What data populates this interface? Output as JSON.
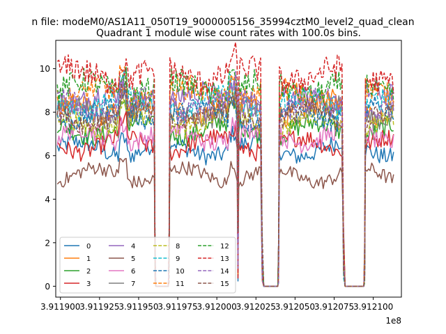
{
  "chart_data": {
    "type": "line",
    "suptitle": "n file: modeM0/AS1A11_050T19_9000005156_35994cztM0_level2_quad_clean",
    "title": "Quadrant 1 module wise count rates with 100.0s bins.",
    "xlabel": "",
    "ylabel": "",
    "x_offset_label": "1e8",
    "xlim": [
      391189700,
      391211800
    ],
    "ylim": [
      -0.5,
      11.3
    ],
    "xticks": [
      391190000,
      391192500,
      391195000,
      391197500,
      391200000,
      391202500,
      391205000,
      391207500,
      391210000
    ],
    "xtick_labels": [
      "3.911900",
      "3.911925",
      "3.911950",
      "3.911975",
      "3.912000",
      "3.912025",
      "3.912050",
      "3.912075",
      "3.912100"
    ],
    "yticks": [
      0,
      2,
      4,
      6,
      8,
      10
    ],
    "ytick_labels": [
      "0",
      "2",
      "4",
      "6",
      "8",
      "10"
    ],
    "grid": false,
    "legend_location": "lower-left",
    "legend_columns": 4,
    "bin_seconds": 100,
    "active_segments": [
      [
        391189800,
        391196000
      ],
      [
        391197000,
        391201300
      ],
      [
        391201400,
        391202800
      ],
      [
        391204000,
        391208000
      ],
      [
        391209500,
        391211300
      ]
    ],
    "zero_gaps": [
      [
        391196100,
        391196900
      ],
      [
        391203000,
        391203900
      ],
      [
        391208200,
        391209400
      ]
    ],
    "series": [
      {
        "name": "0",
        "dash": false,
        "color": "#1f77b4",
        "level": 6.3
      },
      {
        "name": "1",
        "dash": false,
        "color": "#ff7f0e",
        "level": 8.2
      },
      {
        "name": "2",
        "dash": false,
        "color": "#2ca02c",
        "level": 7.2
      },
      {
        "name": "3",
        "dash": false,
        "color": "#d62728",
        "level": 6.5
      },
      {
        "name": "4",
        "dash": false,
        "color": "#9467bd",
        "level": 8.6
      },
      {
        "name": "5",
        "dash": false,
        "color": "#8c564b",
        "level": 5.1
      },
      {
        "name": "6",
        "dash": false,
        "color": "#e377c2",
        "level": 6.9
      },
      {
        "name": "7",
        "dash": false,
        "color": "#7f7f7f",
        "level": 8.0
      },
      {
        "name": "8",
        "dash": true,
        "color": "#bcbd22",
        "level": 7.6
      },
      {
        "name": "9",
        "dash": true,
        "color": "#17becf",
        "level": 8.4
      },
      {
        "name": "10",
        "dash": true,
        "color": "#1f77b4",
        "level": 7.9
      },
      {
        "name": "11",
        "dash": true,
        "color": "#ff7f0e",
        "level": 8.8
      },
      {
        "name": "12",
        "dash": true,
        "color": "#2ca02c",
        "level": 9.1
      },
      {
        "name": "13",
        "dash": true,
        "color": "#d62728",
        "level": 9.7
      },
      {
        "name": "14",
        "dash": true,
        "color": "#9467bd",
        "level": 8.3
      },
      {
        "name": "15",
        "dash": true,
        "color": "#8c564b",
        "level": 7.8
      }
    ]
  }
}
